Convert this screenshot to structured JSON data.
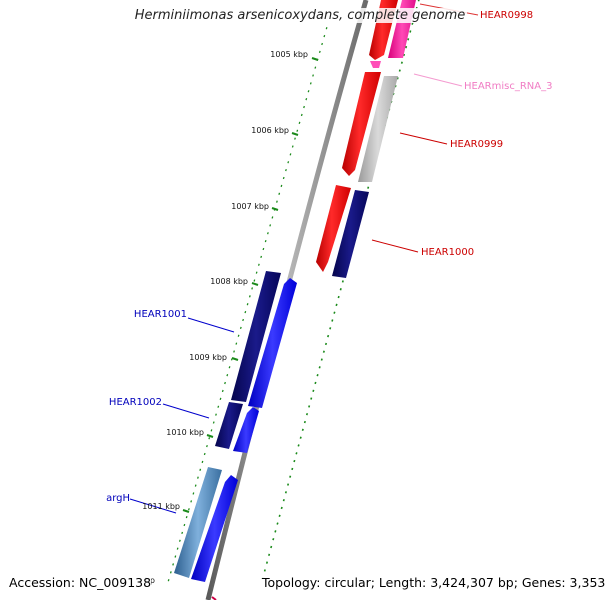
{
  "title": "Herminiimonas arsenicoxydans, complete genome",
  "accession_label": "Accession: NC_009138",
  "topology_label": "Topology: circular; Length: 3,424,307 bp; Genes: 3,353",
  "ruler_ticks": [
    "1005 kbp",
    "1006 kbp",
    "1007 kbp",
    "1008 kbp",
    "1009 kbp",
    "1010 kbp",
    "1011 kbp"
  ],
  "ruler_partial": "bp",
  "gene_labels": [
    "HEAR0998",
    "HEARmisc_RNA_3",
    "HEAR0999",
    "HEAR1000",
    "HEAR1001",
    "HEAR1002",
    "argH"
  ],
  "colors": {
    "forward_gene": "#ff0000",
    "reverse_gene": "#0000ff",
    "dark_blue": "#0a0a73",
    "misc_rna": "#ff1ba8",
    "pseudo_gray": "#c8c8c8",
    "steel_blue": "#4a84b8",
    "backbone": "#7a7a7a",
    "dot_green": "#1a8a1a"
  }
}
